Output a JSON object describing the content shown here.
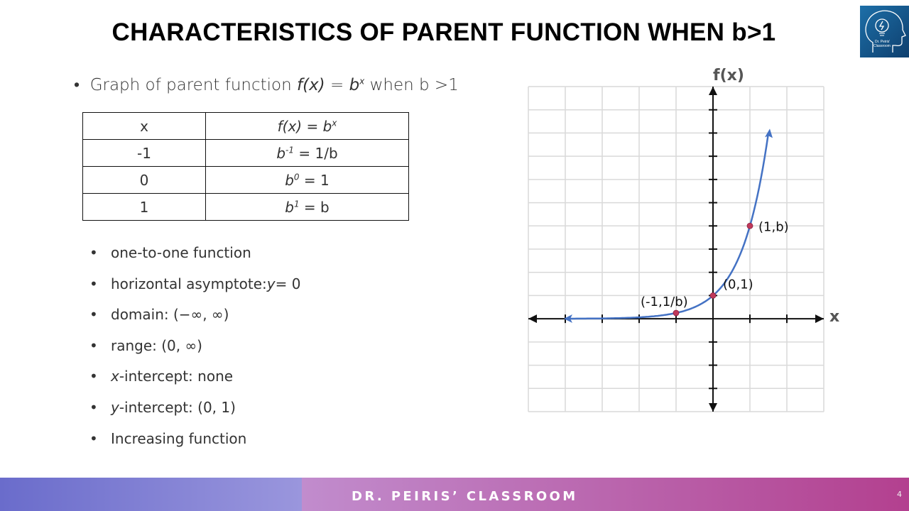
{
  "title": "CHARACTERISTICS OF PARENT FUNCTION WHEN b>1",
  "logo": {
    "text": "Dr. Peiris' Classroom",
    "icon": "head-lightbulb-icon"
  },
  "intro": {
    "bullet": "•",
    "prefix": "Graph of parent function ",
    "fx": "f(x)",
    "eq": " = ",
    "base": "b",
    "exp": "x",
    "suffix": " when b >1"
  },
  "table": {
    "header": {
      "x": "x",
      "fx": "f(x)",
      "eq": " = ",
      "base": "b",
      "exp": "x"
    },
    "rows": [
      {
        "x": "-1",
        "base": "b",
        "exp": "-1",
        "rest": " = 1/b"
      },
      {
        "x": "0",
        "base": "b",
        "exp": "0",
        "rest": " = 1"
      },
      {
        "x": "1",
        "base": "b",
        "exp": "1",
        "rest": " = b"
      }
    ]
  },
  "properties": [
    {
      "pre": "one-to-one function",
      "ital": "",
      "post": ""
    },
    {
      "pre": "horizontal asymptote: ",
      "ital": "y",
      "post": " = 0"
    },
    {
      "pre": "domain: (−∞, ∞)",
      "ital": "",
      "post": ""
    },
    {
      "pre": "range: (0, ∞)",
      "ital": "",
      "post": ""
    },
    {
      "pre": "",
      "ital": "x",
      "post": "-intercept: none"
    },
    {
      "pre": "",
      "ital": "y",
      "post": "-intercept: (0, 1)"
    },
    {
      "pre": "Increasing function",
      "ital": "",
      "post": ""
    }
  ],
  "chart_data": {
    "type": "line",
    "xlabel": "x",
    "ylabel": "f(x)",
    "xlim": [
      -5,
      3
    ],
    "ylim": [
      -4,
      10
    ],
    "grid": true,
    "function": "b^x, b>1",
    "curve_color": "#4472c4",
    "point_color": "#c0395a",
    "points": [
      {
        "x": -1,
        "y": 0.25,
        "label": "(-1,1/b)"
      },
      {
        "x": 0,
        "y": 1,
        "label": "(0,1)"
      },
      {
        "x": 1,
        "y": 4,
        "label": "(1,b)"
      }
    ]
  },
  "footer": {
    "text": "DR. PEIRIS’ CLASSROOM",
    "page": "4"
  }
}
